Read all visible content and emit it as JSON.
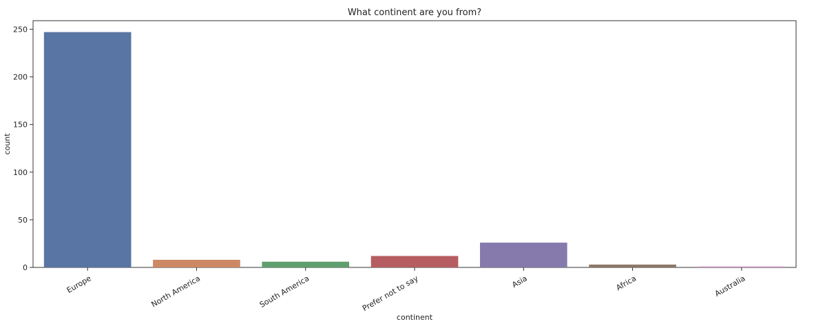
{
  "chart_data": {
    "type": "bar",
    "title": "What continent are you from?",
    "xlabel": "continent",
    "ylabel": "count",
    "categories": [
      "Europe",
      "North America",
      "South America",
      "Prefer not to say",
      "Asia",
      "Africa",
      "Australia"
    ],
    "values": [
      247,
      8,
      6,
      12,
      26,
      3,
      1
    ],
    "colors": [
      "#5975a4",
      "#cc8963",
      "#5f9e6e",
      "#b55d60",
      "#857aab",
      "#8d7866",
      "#d095bf"
    ],
    "ylim": [
      0,
      259
    ],
    "yticks": [
      0,
      50,
      100,
      150,
      200,
      250
    ],
    "grid": false,
    "legend": "none",
    "tick_rotation": -30
  }
}
